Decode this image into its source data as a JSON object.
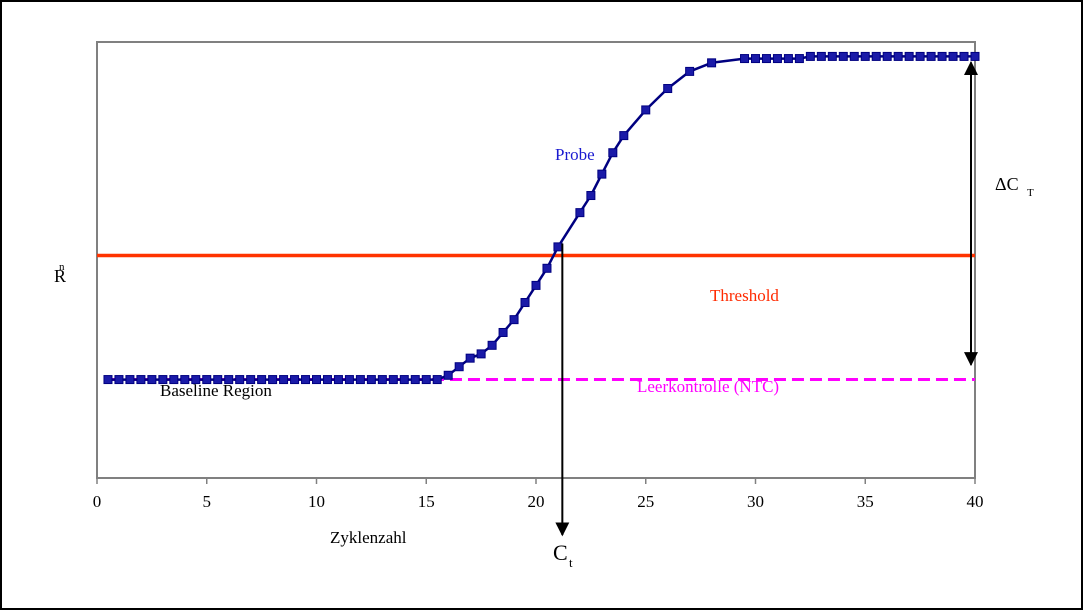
{
  "chart_data": {
    "type": "line",
    "xlabel": "Zyklenzahl",
    "ylabel_main": "R",
    "ylabel_sup": "n",
    "xlim": [
      0,
      40
    ],
    "ylim": [
      0,
      1
    ],
    "xticks": [
      0,
      5,
      10,
      15,
      20,
      25,
      30,
      35,
      40
    ],
    "grid": false,
    "legend": "none",
    "series": [
      {
        "name": "Probe",
        "color": "#000080",
        "marker_color": "#1a1aa8",
        "x": [
          0.5,
          1,
          1.5,
          2,
          2.5,
          3,
          3.5,
          4,
          4.5,
          5,
          5.5,
          6,
          6.5,
          7,
          7.5,
          8,
          8.5,
          9,
          9.5,
          10,
          10.5,
          11,
          11.5,
          12,
          12.5,
          13,
          13.5,
          14,
          14.5,
          15,
          15.5,
          16,
          16.5,
          17,
          17.5,
          18,
          18.5,
          19,
          19.5,
          20,
          20.5,
          21,
          22,
          22.5,
          23,
          23.5,
          24,
          25,
          26,
          27,
          28,
          29.5,
          30,
          30.5,
          31,
          31.5,
          32,
          32.5,
          33,
          33.5,
          34,
          34.5,
          35,
          35.5,
          36,
          36.5,
          37,
          37.5,
          38,
          38.5,
          39,
          39.5,
          40
        ],
        "y": [
          0.23,
          0.23,
          0.23,
          0.23,
          0.23,
          0.23,
          0.23,
          0.23,
          0.23,
          0.23,
          0.23,
          0.23,
          0.23,
          0.23,
          0.23,
          0.23,
          0.23,
          0.23,
          0.23,
          0.23,
          0.23,
          0.23,
          0.23,
          0.23,
          0.23,
          0.23,
          0.23,
          0.23,
          0.23,
          0.23,
          0.23,
          0.24,
          0.26,
          0.28,
          0.29,
          0.31,
          0.34,
          0.37,
          0.41,
          0.45,
          0.49,
          0.54,
          0.62,
          0.66,
          0.71,
          0.76,
          0.8,
          0.86,
          0.91,
          0.95,
          0.97,
          0.98,
          0.98,
          0.98,
          0.98,
          0.98,
          0.98,
          0.985,
          0.985,
          0.985,
          0.985,
          0.985,
          0.985,
          0.985,
          0.985,
          0.985,
          0.985,
          0.985,
          0.985,
          0.985,
          0.985,
          0.985,
          0.985
        ]
      },
      {
        "name": "Leerkontrolle (NTC)",
        "color": "#ff00ff",
        "x": [
          0.5,
          40
        ],
        "y": [
          0.23,
          0.23
        ]
      },
      {
        "name": "Threshold",
        "color": "#ff3300",
        "x": [
          0,
          40
        ],
        "y": [
          0.52,
          0.52
        ]
      }
    ],
    "annotations": {
      "probe": "Probe",
      "threshold": "Threshold",
      "ntc": "Leerkontrolle (NTC)",
      "baseline": "Baseline Region",
      "ct_main": "C",
      "ct_sub": "t",
      "delta_main": "ΔC",
      "delta_sub": "T"
    },
    "ct_value": 21.2
  }
}
